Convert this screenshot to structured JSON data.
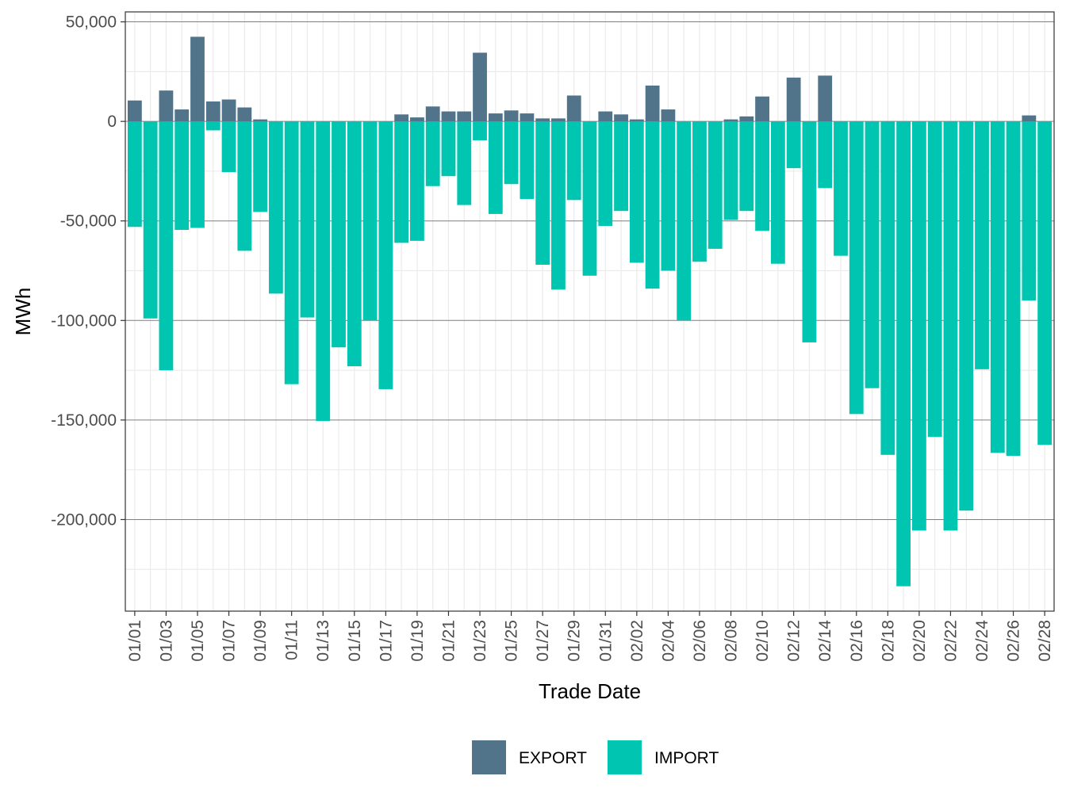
{
  "chart_data": {
    "type": "bar",
    "xlabel": "Trade Date",
    "ylabel": "MWh",
    "ylim": [
      -246000,
      55000
    ],
    "y_ticks": [
      {
        "value": 50000,
        "label": "50,000"
      },
      {
        "value": 0,
        "label": "0"
      },
      {
        "value": -50000,
        "label": "-50,000"
      },
      {
        "value": -100000,
        "label": "-100,000"
      },
      {
        "value": -150000,
        "label": "-150,000"
      },
      {
        "value": -200000,
        "label": "-200,000"
      }
    ],
    "grid": true,
    "legend_position": "bottom",
    "categories": [
      "01/01",
      "01/02",
      "01/03",
      "01/04",
      "01/05",
      "01/06",
      "01/07",
      "01/08",
      "01/09",
      "01/10",
      "01/11",
      "01/12",
      "01/13",
      "01/14",
      "01/15",
      "01/16",
      "01/17",
      "01/18",
      "01/19",
      "01/20",
      "01/21",
      "01/22",
      "01/23",
      "01/24",
      "01/25",
      "01/26",
      "01/27",
      "01/28",
      "01/29",
      "01/30",
      "01/31",
      "02/01",
      "02/02",
      "02/03",
      "02/04",
      "02/05",
      "02/06",
      "02/07",
      "02/08",
      "02/09",
      "02/10",
      "02/11",
      "02/12",
      "02/13",
      "02/14",
      "02/15",
      "02/16",
      "02/17",
      "02/18",
      "02/19",
      "02/20",
      "02/21",
      "02/22",
      "02/23",
      "02/24",
      "02/25",
      "02/26",
      "02/27",
      "02/28"
    ],
    "x_tick_labels": [
      "01/01",
      "01/03",
      "01/05",
      "01/07",
      "01/09",
      "01/11",
      "01/13",
      "01/15",
      "01/17",
      "01/19",
      "01/21",
      "01/23",
      "01/25",
      "01/27",
      "01/29",
      "01/31",
      "02/02",
      "02/04",
      "02/06",
      "02/08",
      "02/10",
      "02/12",
      "02/14",
      "02/16",
      "02/18",
      "02/20",
      "02/22",
      "02/24",
      "02/26",
      "02/28"
    ],
    "series": [
      {
        "name": "EXPORT",
        "color": "#51748A",
        "values": [
          10500,
          0,
          15500,
          6000,
          42500,
          10000,
          11000,
          7000,
          1000,
          0,
          0,
          0,
          0,
          0,
          0,
          0,
          0,
          3500,
          2000,
          7500,
          5000,
          5000,
          34500,
          4000,
          5500,
          4000,
          1500,
          1500,
          13000,
          0,
          5000,
          3500,
          1000,
          18000,
          6000,
          0,
          0,
          0,
          1000,
          2500,
          12500,
          0,
          22000,
          0,
          23000,
          0,
          0,
          0,
          0,
          0,
          0,
          0,
          0,
          0,
          0,
          0,
          0,
          3000,
          0
        ]
      },
      {
        "name": "IMPORT",
        "color": "#00C5B0",
        "values": [
          -53000,
          -99000,
          -125000,
          -54500,
          -53500,
          -4500,
          -25500,
          -65000,
          -45500,
          -86500,
          -132000,
          -98500,
          -150500,
          -113500,
          -123000,
          -100000,
          -134500,
          -61000,
          -60000,
          -32500,
          -27500,
          -42000,
          -9500,
          -46500,
          -31500,
          -39000,
          -72000,
          -84500,
          -39500,
          -77500,
          -52500,
          -45000,
          -71000,
          -84000,
          -75000,
          -100000,
          -70500,
          -64000,
          -49500,
          -45000,
          -55000,
          -71500,
          -23500,
          -111000,
          -33500,
          -67500,
          -147000,
          -134000,
          -167500,
          -233500,
          -205500,
          -158500,
          -205500,
          -195500,
          -124500,
          -166500,
          -168000,
          -90000,
          -162500
        ]
      }
    ]
  }
}
